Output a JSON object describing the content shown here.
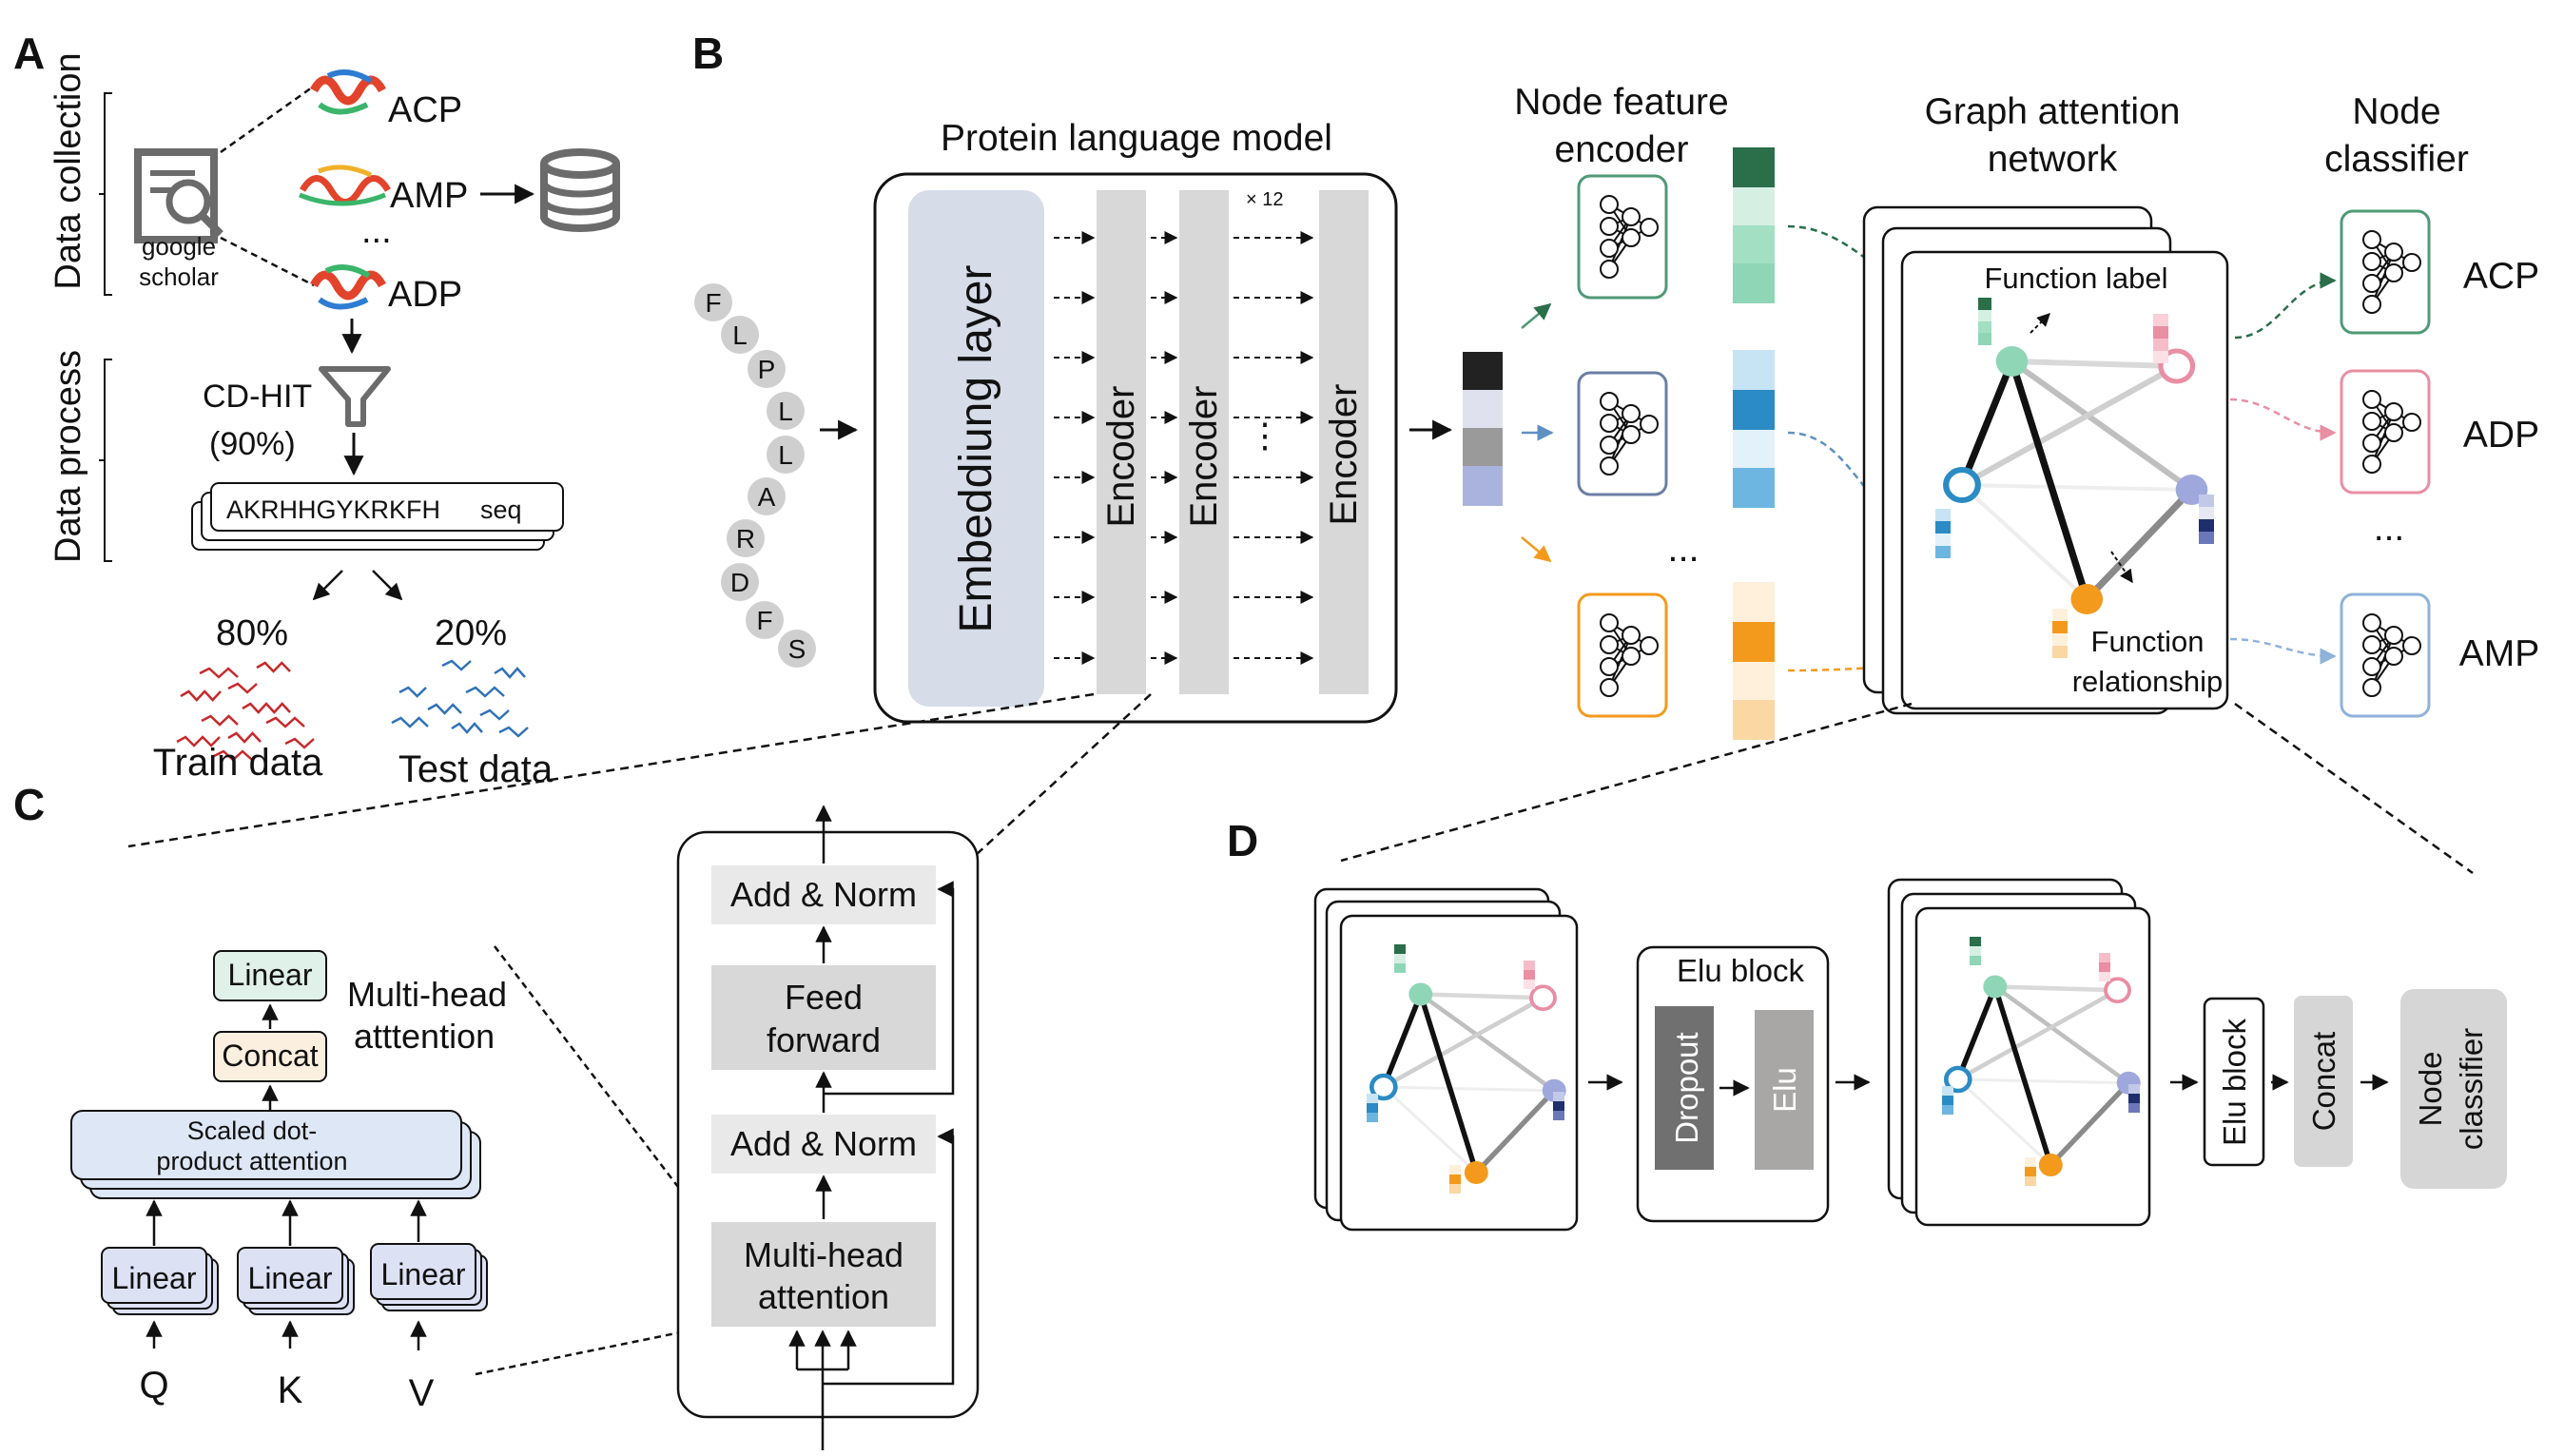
{
  "panels": {
    "a": "A",
    "b": "B",
    "c": "C",
    "d": "D"
  },
  "panel_a": {
    "data_collection": "Data collection",
    "data_process": "Data process",
    "google": "google",
    "scholar": "scholar",
    "acp": "ACP",
    "amp": "AMP",
    "dots": "...",
    "adp": "ADP",
    "cdhit": "CD-HIT",
    "cdhit_pct": "(90%)",
    "sequence": "AKRHHGYKRKFH",
    "seq_label": "seq",
    "train_pct": "80%",
    "test_pct": "20%",
    "train_label": "Train data",
    "test_label": "Test data"
  },
  "panel_b": {
    "plm_title": "Protein language model",
    "letters": [
      "F",
      "L",
      "P",
      "L",
      "L",
      "A",
      "R",
      "D",
      "F",
      "S"
    ],
    "embedding": "Embeddiung layer",
    "encoder": "Encoder",
    "times": "× 12",
    "vdots": "⋮",
    "nfe_title_1": "Node feature",
    "nfe_title_2": "encoder",
    "ellipsis": "...",
    "gat_title_1": "Graph attention",
    "gat_title_2": "network",
    "function_label": "Function label",
    "function_rel_1": "Function",
    "function_rel_2": "relationship",
    "nc_title_1": "Node",
    "nc_title_2": "classifier",
    "classes": [
      "ACP",
      "ADP",
      "AMP"
    ],
    "class_dots": "..."
  },
  "panel_c": {
    "linear_top": "Linear",
    "concat": "Concat",
    "sdpa_1": "Scaled dot-",
    "sdpa_2": "product attention",
    "mha_label_1": "Multi-head",
    "mha_label_2": "atttention",
    "linear": "Linear",
    "q": "Q",
    "k": "K",
    "v": "V",
    "add_norm": "Add & Norm",
    "ff_1": "Feed",
    "ff_2": "forward",
    "mha_1": "Multi-head",
    "mha_2": "attention"
  },
  "panel_d": {
    "elu_block_title": "Elu block",
    "dropout": "Dropout",
    "elu": "Elu",
    "elu_block": "Elu block",
    "concat": "Concat",
    "node_classifier_1": "Node",
    "node_classifier_2": "classifier"
  },
  "colors": {
    "green": "#2a6e4a",
    "green_mid": "#8fd6b6",
    "blue": "#2b8bc4",
    "blue_light": "#a8d4ee",
    "orange": "#f39a1c",
    "orange_light": "#fbd7a4",
    "pink": "#e98ea3",
    "navy": "#1f2f6e",
    "periwinkle": "#9ea8dd",
    "embed_fill": "#d6dde9",
    "encoder_fill": "#d8d8d8",
    "train_red": "#c8282a",
    "test_blue": "#2f72b8"
  },
  "icons": [
    "search-document-icon",
    "database-icon",
    "filter-funnel-icon",
    "neural-network-icon",
    "protein-structure-icon"
  ]
}
